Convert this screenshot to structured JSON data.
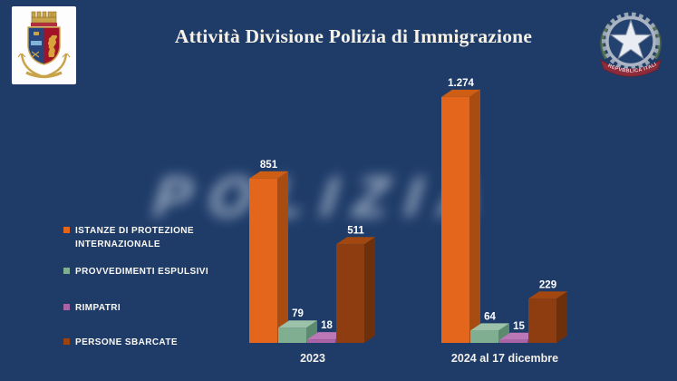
{
  "slide": {
    "title": "Attività Divisione Polizia di Immigrazione",
    "watermark": "POLIZIA",
    "background_color": "#1F3C69",
    "title_color": "#F6F2E7"
  },
  "logos": {
    "polizia_badge": "polizia-di-stato-crest",
    "republic_emblem": "emblema-repubblica-italiana",
    "republic_emblem_ribbon_text": "REPVBBLICA ITALIANA"
  },
  "legend": {
    "items": [
      {
        "label": "ISTANZE DI PROTEZIONE INTERNAZIONALE",
        "color": "#E4661C"
      },
      {
        "label": "PROVVEDIMENTI ESPULSIVI",
        "color": "#7FAF90"
      },
      {
        "label": "RIMPATRI",
        "color": "#AC63A6"
      },
      {
        "label": "PERSONE SBARCATE",
        "color": "#9C430F"
      }
    ]
  },
  "chart_data": {
    "type": "bar",
    "style": "3d-clustered-columns",
    "categories": [
      "2023",
      "2024 al 17 dicembre"
    ],
    "series": [
      {
        "name": "ISTANZE DI PROTEZIONE INTERNAZIONALE",
        "values": [
          851,
          1274
        ],
        "value_labels": [
          "851",
          "1.274"
        ],
        "front": "#E4661C",
        "side": "#A84C12",
        "top": "#CE5E14"
      },
      {
        "name": "PROVVEDIMENTI ESPULSIVI",
        "values": [
          79,
          64
        ],
        "value_labels": [
          "79",
          "64"
        ],
        "front": "#7FAF90",
        "side": "#5B8A6E",
        "top": "#9CC3AA"
      },
      {
        "name": "RIMPATRI",
        "values": [
          18,
          15
        ],
        "value_labels": [
          "18",
          "15"
        ],
        "front": "#AC63A6",
        "side": "#85497F",
        "top": "#BC78B6"
      },
      {
        "name": "PERSONE SBARCATE",
        "values": [
          511,
          229
        ],
        "value_labels": [
          "511",
          "229"
        ],
        "front": "#8E3D10",
        "side": "#6E2F0B",
        "top": "#A1470F"
      }
    ],
    "value_label_color": "#FFFFFF",
    "category_label_color": "#F2EFE9",
    "ylim": [
      0,
      1350
    ],
    "gridlines": false,
    "axes_visible": false,
    "legend_position": "left"
  }
}
